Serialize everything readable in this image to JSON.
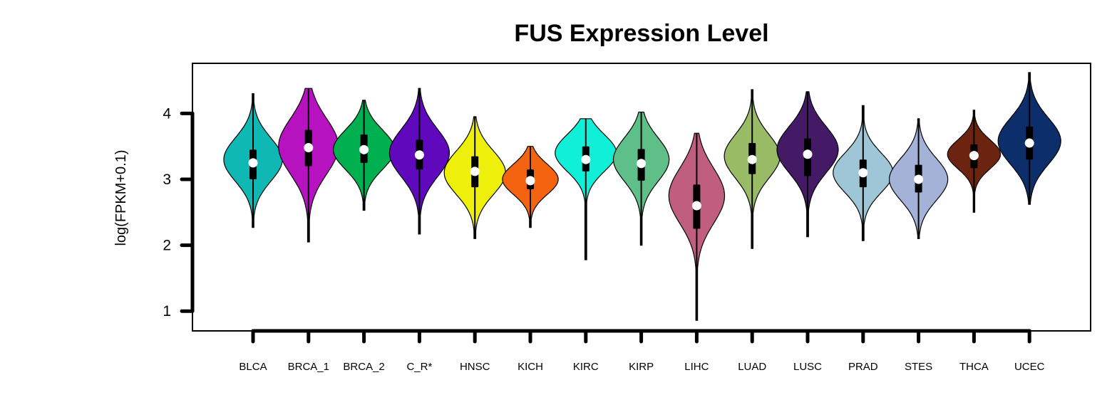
{
  "chart_data": {
    "type": "violin",
    "title": "FUS Expression Level",
    "ylabel": "log(FPKM+0.1)",
    "xlabel": "",
    "ylim": [
      0.7,
      4.76
    ],
    "yticks": [
      1,
      2,
      3,
      4
    ],
    "grid": false,
    "legend": "none",
    "categories": [
      "BLCA",
      "BRCA_1",
      "BRCA_2",
      "C_R*",
      "HNSC",
      "KICH",
      "KIRC",
      "KIRP",
      "LIHC",
      "LUAD",
      "LUSC",
      "PRAD",
      "STES",
      "THCA",
      "UCEC"
    ],
    "series": [
      {
        "category": "BLCA",
        "color": "#0FB8B2",
        "min": 2.27,
        "q1": 3.0,
        "median": 3.25,
        "q3": 3.45,
        "max": 4.3,
        "peak": 3.3,
        "maxDensity": 0.42,
        "spread": 0.33
      },
      {
        "category": "BRCA_1",
        "color": "#B612C0",
        "min": 2.05,
        "q1": 3.2,
        "median": 3.48,
        "q3": 3.75,
        "max": 4.38,
        "peak": 3.5,
        "maxDensity": 0.43,
        "spread": 0.42
      },
      {
        "category": "BRCA_2",
        "color": "#00B050",
        "min": 2.53,
        "q1": 3.25,
        "median": 3.45,
        "q3": 3.68,
        "max": 4.2,
        "peak": 3.45,
        "maxDensity": 0.44,
        "spread": 0.3
      },
      {
        "category": "C_R*",
        "color": "#6008BC",
        "min": 2.17,
        "q1": 3.15,
        "median": 3.37,
        "q3": 3.6,
        "max": 4.38,
        "peak": 3.4,
        "maxDensity": 0.43,
        "spread": 0.36
      },
      {
        "category": "HNSC",
        "color": "#EEF00C",
        "min": 2.1,
        "q1": 2.88,
        "median": 3.12,
        "q3": 3.35,
        "max": 3.95,
        "peak": 3.1,
        "maxDensity": 0.44,
        "spread": 0.33
      },
      {
        "category": "KICH",
        "color": "#F46410",
        "min": 2.27,
        "q1": 2.85,
        "median": 2.98,
        "q3": 3.15,
        "max": 3.5,
        "peak": 3.0,
        "maxDensity": 0.4,
        "spread": 0.23
      },
      {
        "category": "KIRC",
        "color": "#10F0D8",
        "min": 1.78,
        "q1": 3.12,
        "median": 3.3,
        "q3": 3.5,
        "max": 3.92,
        "peak": 3.4,
        "maxDensity": 0.44,
        "spread": 0.28
      },
      {
        "category": "KIRP",
        "color": "#5EBF88",
        "min": 2.0,
        "q1": 2.98,
        "median": 3.24,
        "q3": 3.46,
        "max": 4.02,
        "peak": 3.3,
        "maxDensity": 0.4,
        "spread": 0.33
      },
      {
        "category": "LIHC",
        "color": "#C05E80",
        "min": 0.86,
        "q1": 2.25,
        "median": 2.6,
        "q3": 2.92,
        "max": 3.7,
        "peak": 2.75,
        "maxDensity": 0.4,
        "spread": 0.42
      },
      {
        "category": "LUAD",
        "color": "#99BB66",
        "min": 1.95,
        "q1": 3.08,
        "median": 3.3,
        "q3": 3.55,
        "max": 4.36,
        "peak": 3.35,
        "maxDensity": 0.4,
        "spread": 0.33
      },
      {
        "category": "LUSC",
        "color": "#441A66",
        "min": 2.13,
        "q1": 3.05,
        "median": 3.38,
        "q3": 3.62,
        "max": 4.33,
        "peak": 3.45,
        "maxDensity": 0.44,
        "spread": 0.35
      },
      {
        "category": "PRAD",
        "color": "#9EC6D6",
        "min": 2.07,
        "q1": 2.88,
        "median": 3.1,
        "q3": 3.3,
        "max": 4.12,
        "peak": 3.1,
        "maxDensity": 0.43,
        "spread": 0.3
      },
      {
        "category": "STES",
        "color": "#A4B2D8",
        "min": 2.1,
        "q1": 2.8,
        "median": 3.0,
        "q3": 3.22,
        "max": 3.92,
        "peak": 3.0,
        "maxDensity": 0.42,
        "spread": 0.32
      },
      {
        "category": "THCA",
        "color": "#6C2410",
        "min": 2.5,
        "q1": 3.17,
        "median": 3.36,
        "q3": 3.53,
        "max": 4.05,
        "peak": 3.38,
        "maxDensity": 0.38,
        "spread": 0.22
      },
      {
        "category": "UCEC",
        "color": "#0C2E6A",
        "min": 2.62,
        "q1": 3.3,
        "median": 3.55,
        "q3": 3.8,
        "max": 4.62,
        "peak": 3.58,
        "maxDensity": 0.45,
        "spread": 0.35
      }
    ]
  }
}
